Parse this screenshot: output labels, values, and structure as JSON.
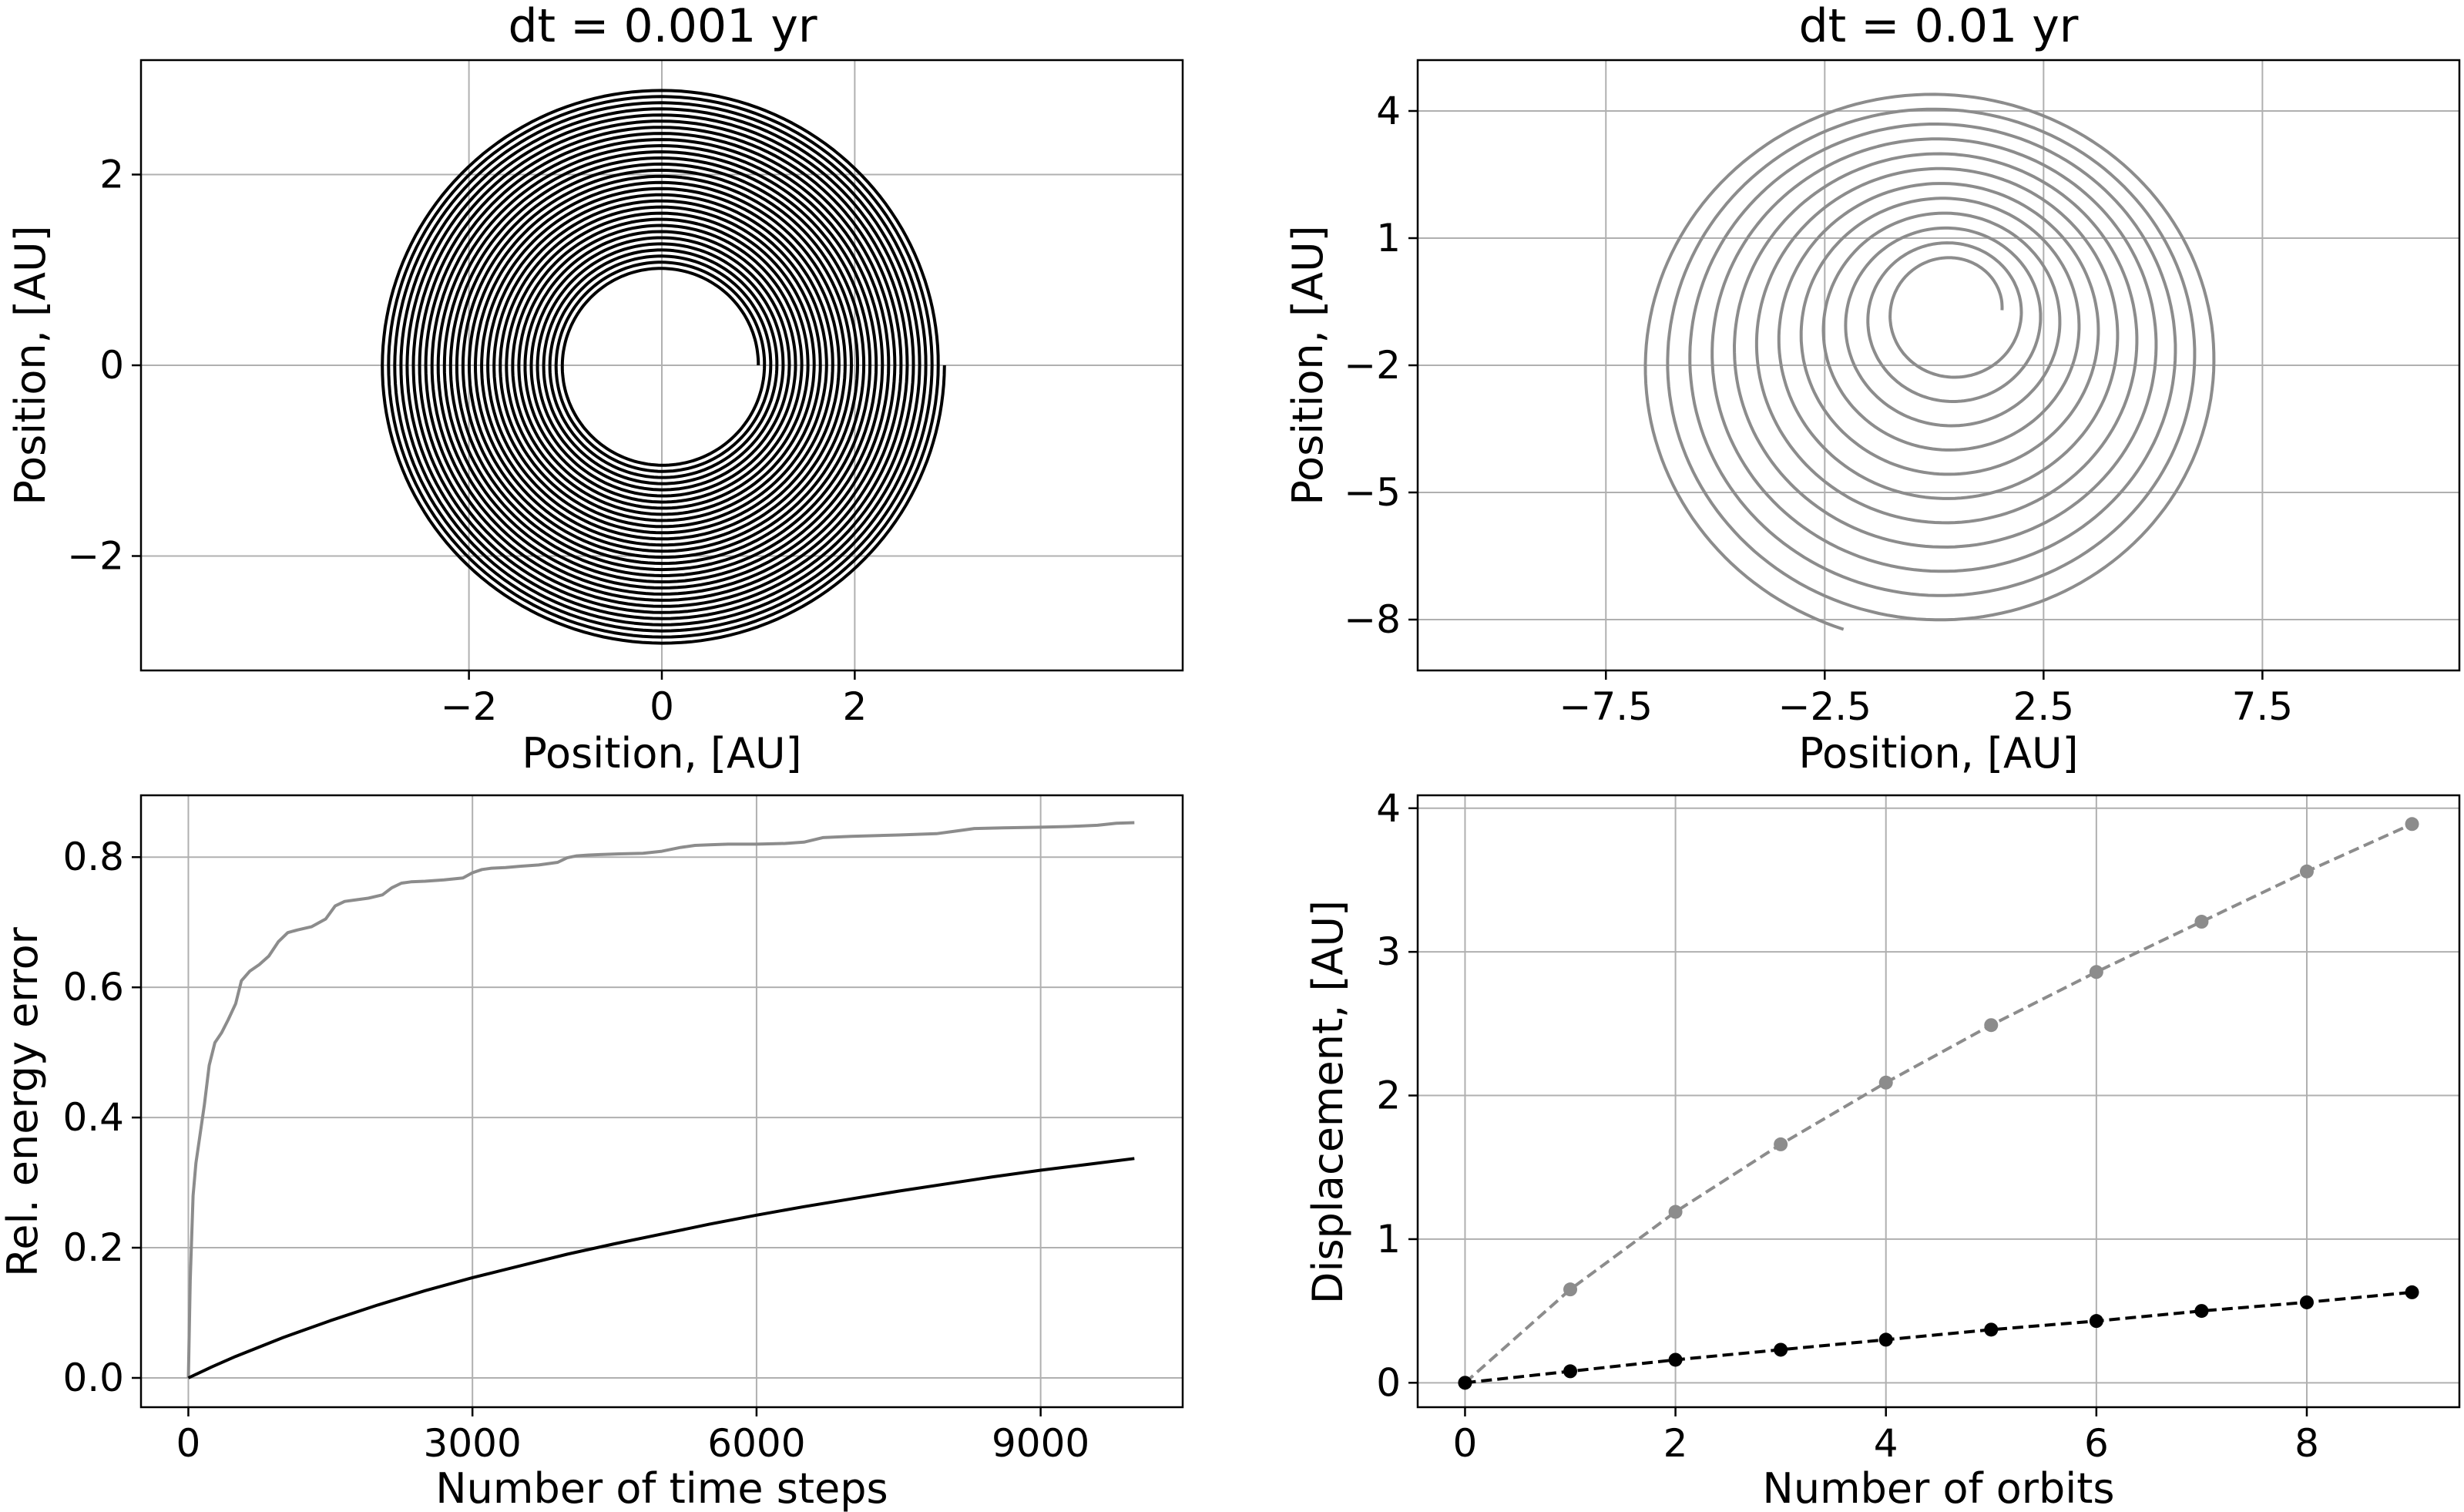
{
  "chart_data": [
    {
      "id": "p1",
      "type": "line",
      "title": "dt = 0.001 yr",
      "xlabel": "Position, [AU]",
      "ylabel": "Position, [AU]",
      "xlim": [
        -5.4,
        5.4
      ],
      "ylim": [
        -3.2,
        3.2
      ],
      "xticks": [
        -2,
        0,
        2
      ],
      "yticks": [
        -2,
        0,
        2
      ],
      "xtick_labels": [
        "−2",
        "0",
        "2"
      ],
      "ytick_labels": [
        "−2",
        "0",
        "2"
      ],
      "grid": true,
      "series": [
        {
          "color": "#000000",
          "spiral": {
            "cx": 0,
            "cy": 0,
            "r_start": 1.0,
            "r_end": 2.93,
            "turns": 30
          }
        }
      ]
    },
    {
      "id": "p2",
      "type": "line",
      "title": "dt = 0.01 yr",
      "xlabel": "Position, [AU]",
      "ylabel": "Position, [AU]",
      "xlim": [
        -11.8,
        12.0
      ],
      "ylim": [
        -9.2,
        5.2
      ],
      "xticks": [
        -7.5,
        -2.5,
        2.5,
        7.5
      ],
      "yticks": [
        4,
        1,
        -2,
        -5,
        -8
      ],
      "xtick_labels": [
        "−7.5",
        "−2.5",
        "2.5",
        "7.5"
      ],
      "ytick_labels": [
        "4",
        "1",
        "−2",
        "−5",
        "−8"
      ],
      "grid": true,
      "series": [
        {
          "color": "#8c8c8c",
          "spiral": {
            "cx_start": 0.4,
            "cy_start": -0.7,
            "cx_end": 0.0,
            "cy_end": -2.0,
            "rx_start": 1.15,
            "ry_start": 1.15,
            "rx_end": 6.7,
            "ry_end": 6.55,
            "turns": 11.7
          }
        }
      ]
    },
    {
      "id": "p3",
      "type": "line",
      "title": "",
      "xlabel": "Number of time steps",
      "ylabel": "Rel. energy error",
      "xlim": [
        -500,
        10500
      ],
      "ylim": [
        -0.045,
        0.895
      ],
      "xticks": [
        0,
        3000,
        6000,
        9000
      ],
      "yticks": [
        0.0,
        0.2,
        0.4,
        0.6,
        0.8
      ],
      "xtick_labels": [
        "0",
        "3000",
        "6000",
        "9000"
      ],
      "ytick_labels": [
        "0.0",
        "0.2",
        "0.4",
        "0.6",
        "0.8"
      ],
      "grid": true,
      "series": [
        {
          "color": "#8c8c8c",
          "x": [
            0,
            20,
            50,
            80,
            120,
            170,
            220,
            280,
            350,
            420,
            500,
            560,
            650,
            750,
            850,
            950,
            1050,
            1150,
            1300,
            1450,
            1550,
            1650,
            1750,
            1900,
            2050,
            2150,
            2250,
            2350,
            2500,
            2700,
            2900,
            3000,
            3100,
            3200,
            3350,
            3500,
            3700,
            3900,
            4000,
            4100,
            4200,
            4350,
            4550,
            4800,
            5000,
            5200,
            5350,
            5500,
            5700,
            6000,
            6300,
            6500,
            6700,
            7000,
            7500,
            7900,
            8100,
            8300,
            8600,
            9000,
            9300,
            9600,
            9800,
            9990
          ],
          "y": [
            0.0,
            0.15,
            0.28,
            0.33,
            0.37,
            0.42,
            0.48,
            0.515,
            0.53,
            0.55,
            0.575,
            0.61,
            0.625,
            0.635,
            0.648,
            0.67,
            0.684,
            0.688,
            0.693,
            0.705,
            0.725,
            0.732,
            0.734,
            0.737,
            0.742,
            0.753,
            0.76,
            0.762,
            0.763,
            0.765,
            0.768,
            0.776,
            0.781,
            0.783,
            0.784,
            0.786,
            0.788,
            0.792,
            0.799,
            0.802,
            0.803,
            0.804,
            0.805,
            0.806,
            0.809,
            0.815,
            0.818,
            0.819,
            0.82,
            0.82,
            0.821,
            0.823,
            0.83,
            0.832,
            0.834,
            0.836,
            0.84,
            0.844,
            0.845,
            0.846,
            0.847,
            0.849,
            0.852,
            0.853
          ]
        },
        {
          "color": "#000000",
          "x": [
            0,
            250,
            500,
            1000,
            1500,
            2000,
            2500,
            3000,
            3500,
            4000,
            4500,
            5000,
            5500,
            6000,
            6500,
            7000,
            7500,
            8000,
            8500,
            9000,
            9500,
            9990
          ],
          "y": [
            0.0,
            0.017,
            0.033,
            0.062,
            0.088,
            0.112,
            0.134,
            0.154,
            0.172,
            0.19,
            0.206,
            0.221,
            0.236,
            0.25,
            0.263,
            0.275,
            0.287,
            0.298,
            0.309,
            0.319,
            0.328,
            0.337
          ]
        }
      ]
    },
    {
      "id": "p4",
      "type": "line",
      "title": "",
      "xlabel": "Number of orbits",
      "ylabel": "Displacement, [AU]",
      "xlim": [
        -0.45,
        9.45
      ],
      "ylim": [
        -0.17,
        4.09
      ],
      "xticks": [
        0,
        2,
        4,
        6,
        8
      ],
      "yticks": [
        0,
        1,
        2,
        3,
        4
      ],
      "xtick_labels": [
        "0",
        "2",
        "4",
        "6",
        "8"
      ],
      "ytick_labels": [
        "0",
        "1",
        "2",
        "3",
        "4"
      ],
      "grid": true,
      "series": [
        {
          "color": "#8c8c8c",
          "dashed": true,
          "markers": true,
          "x": [
            0,
            1,
            2,
            3,
            4,
            5,
            6,
            7,
            8,
            9
          ],
          "y": [
            0.0,
            0.65,
            1.19,
            1.66,
            2.09,
            2.49,
            2.86,
            3.21,
            3.56,
            3.89
          ]
        },
        {
          "color": "#000000",
          "dashed": true,
          "markers": true,
          "x": [
            0,
            1,
            2,
            3,
            4,
            5,
            6,
            7,
            8,
            9
          ],
          "y": [
            0.0,
            0.08,
            0.16,
            0.23,
            0.3,
            0.37,
            0.43,
            0.5,
            0.56,
            0.63
          ]
        }
      ]
    }
  ]
}
